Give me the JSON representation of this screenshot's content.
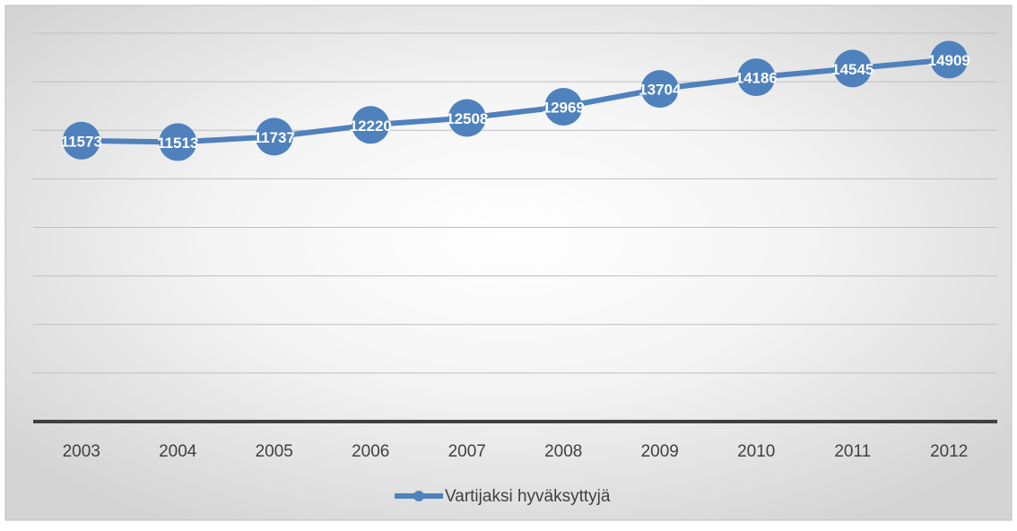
{
  "chart_data": {
    "type": "line",
    "categories": [
      "2003",
      "2004",
      "2005",
      "2006",
      "2007",
      "2008",
      "2009",
      "2010",
      "2011",
      "2012"
    ],
    "series": [
      {
        "name": "Vartijaksi hyväksyttyjä",
        "color": "#4f81bd",
        "values": [
          11573,
          11513,
          11737,
          12220,
          12508,
          12969,
          13704,
          14186,
          14545,
          14909
        ]
      }
    ],
    "ylim": [
      0,
      16000
    ],
    "yticks": [
      0,
      2000,
      4000,
      6000,
      8000,
      10000,
      12000,
      14000,
      16000
    ],
    "grid": true,
    "legend": "bottom",
    "data_labels": true
  }
}
